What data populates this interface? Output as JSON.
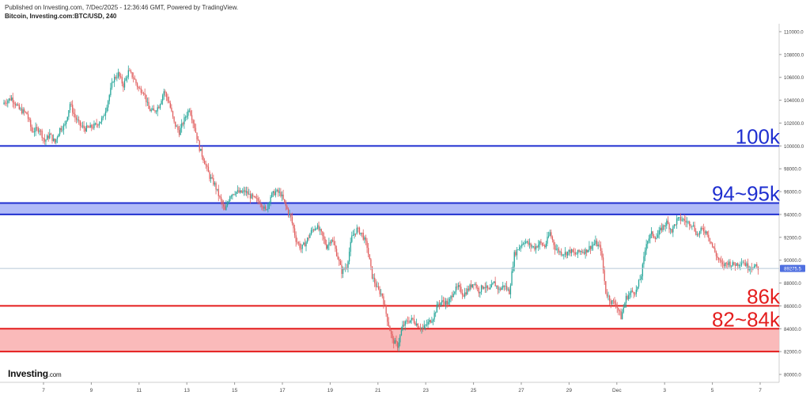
{
  "header": {
    "published": "Published on Investing.com, 7/Dec/2025 - 12:36:46 GMT, Powered by TradingView.",
    "symbol": "Bitcoin, Investing.com:BTC/USD, 240"
  },
  "logo": {
    "brand": "Investing",
    "suffix": ".com"
  },
  "colors": {
    "up": "#26a69a",
    "down": "#e15f5f",
    "blue_line": "#1f2fd0",
    "blue_zone": "#a9b4f7",
    "red_line": "#e41e1e",
    "red_zone": "#f9b3b3",
    "price_line": "#b7c6d6",
    "price_label_bg": "#4f6fe0"
  },
  "chart_data": {
    "type": "candlestick",
    "ylim": [
      79500,
      111000
    ],
    "y_ticks": [
      80000,
      82000,
      84000,
      86000,
      88000,
      90000,
      92000,
      94000,
      96000,
      98000,
      100000,
      102000,
      104000,
      106000,
      108000,
      110000
    ],
    "y_tick_labels": [
      "80000.0",
      "82000.0",
      "84000.0",
      "86000.0",
      "88000.0",
      "90000.0",
      "92000.0",
      "94000.0",
      "96000.0",
      "98000.0",
      "100000.0",
      "102000.0",
      "104000.0",
      "106000.0",
      "108000.0",
      "110000.0"
    ],
    "x_ticks": [
      "7",
      "9",
      "11",
      "13",
      "15",
      "17",
      "19",
      "21",
      "23",
      "25",
      "27",
      "29",
      "Dec",
      "3",
      "5",
      "7"
    ],
    "current_price": "89275.5",
    "current_price_value": 89275.5,
    "levels": [
      {
        "label": "100k",
        "value": 100000,
        "color": "blue"
      },
      {
        "label": "94~95k",
        "low": 94000,
        "high": 95000,
        "color": "blue"
      },
      {
        "label": "86k",
        "value": 86000,
        "color": "red"
      },
      {
        "label": "82~84k",
        "low": 82000,
        "high": 84000,
        "color": "red"
      }
    ],
    "close_path": [
      [
        0,
        103800
      ],
      [
        6,
        104200
      ],
      [
        12,
        103200
      ],
      [
        18,
        102800
      ],
      [
        22,
        101300
      ],
      [
        28,
        101500
      ],
      [
        32,
        100400
      ],
      [
        36,
        101000
      ],
      [
        40,
        100300
      ],
      [
        44,
        101500
      ],
      [
        48,
        101800
      ],
      [
        52,
        103700
      ],
      [
        56,
        102500
      ],
      [
        60,
        101800
      ],
      [
        64,
        101500
      ],
      [
        68,
        101600
      ],
      [
        72,
        101800
      ],
      [
        78,
        102400
      ],
      [
        82,
        104000
      ],
      [
        86,
        105800
      ],
      [
        90,
        106300
      ],
      [
        94,
        105300
      ],
      [
        98,
        106500
      ],
      [
        102,
        106000
      ],
      [
        106,
        105000
      ],
      [
        110,
        104800
      ],
      [
        114,
        103200
      ],
      [
        118,
        103000
      ],
      [
        122,
        103500
      ],
      [
        126,
        104800
      ],
      [
        130,
        103800
      ],
      [
        134,
        102000
      ],
      [
        138,
        101200
      ],
      [
        142,
        102300
      ],
      [
        146,
        103300
      ],
      [
        150,
        101700
      ],
      [
        154,
        99800
      ],
      [
        158,
        98600
      ],
      [
        162,
        97300
      ],
      [
        166,
        96600
      ],
      [
        170,
        95400
      ],
      [
        174,
        94300
      ],
      [
        178,
        95700
      ],
      [
        182,
        96000
      ],
      [
        186,
        95900
      ],
      [
        190,
        96000
      ],
      [
        194,
        95600
      ],
      [
        198,
        95300
      ],
      [
        202,
        95100
      ],
      [
        206,
        94300
      ],
      [
        210,
        95600
      ],
      [
        214,
        96000
      ],
      [
        218,
        95800
      ],
      [
        222,
        94700
      ],
      [
        226,
        93700
      ],
      [
        230,
        91800
      ],
      [
        234,
        91000
      ],
      [
        238,
        91600
      ],
      [
        242,
        92500
      ],
      [
        246,
        93000
      ],
      [
        250,
        92300
      ],
      [
        254,
        91200
      ],
      [
        258,
        91900
      ],
      [
        262,
        90600
      ],
      [
        266,
        89000
      ],
      [
        270,
        89500
      ],
      [
        274,
        92000
      ],
      [
        278,
        92700
      ],
      [
        282,
        92300
      ],
      [
        286,
        91200
      ],
      [
        290,
        88600
      ],
      [
        294,
        87500
      ],
      [
        298,
        86900
      ],
      [
        302,
        84800
      ],
      [
        306,
        83000
      ],
      [
        310,
        82500
      ],
      [
        314,
        84200
      ],
      [
        318,
        84700
      ],
      [
        322,
        84800
      ],
      [
        326,
        84300
      ],
      [
        330,
        84000
      ],
      [
        334,
        84500
      ],
      [
        338,
        85000
      ],
      [
        342,
        86200
      ],
      [
        346,
        86400
      ],
      [
        350,
        86200
      ],
      [
        354,
        87300
      ],
      [
        358,
        87600
      ],
      [
        362,
        87000
      ],
      [
        366,
        87500
      ],
      [
        370,
        88100
      ],
      [
        374,
        87300
      ],
      [
        378,
        87800
      ],
      [
        382,
        87300
      ],
      [
        386,
        88000
      ],
      [
        390,
        87400
      ],
      [
        394,
        87800
      ],
      [
        398,
        87200
      ],
      [
        402,
        90500
      ],
      [
        406,
        91200
      ],
      [
        410,
        91700
      ],
      [
        414,
        91300
      ],
      [
        418,
        91100
      ],
      [
        422,
        91500
      ],
      [
        426,
        91200
      ],
      [
        430,
        92400
      ],
      [
        434,
        91100
      ],
      [
        438,
        90700
      ],
      [
        442,
        90600
      ],
      [
        446,
        90800
      ],
      [
        450,
        90500
      ],
      [
        454,
        90800
      ],
      [
        458,
        90800
      ],
      [
        462,
        91200
      ],
      [
        466,
        91500
      ],
      [
        470,
        91000
      ],
      [
        474,
        87200
      ],
      [
        478,
        86400
      ],
      [
        482,
        86200
      ],
      [
        486,
        85000
      ],
      [
        490,
        86700
      ],
      [
        494,
        87200
      ],
      [
        498,
        87300
      ],
      [
        502,
        88700
      ],
      [
        506,
        91600
      ],
      [
        510,
        92300
      ],
      [
        514,
        92000
      ],
      [
        518,
        92800
      ],
      [
        522,
        93300
      ],
      [
        526,
        92600
      ],
      [
        530,
        93500
      ],
      [
        534,
        93600
      ],
      [
        538,
        93300
      ],
      [
        542,
        93200
      ],
      [
        546,
        92200
      ],
      [
        550,
        92700
      ],
      [
        554,
        92400
      ],
      [
        558,
        91200
      ],
      [
        562,
        90200
      ],
      [
        566,
        89500
      ],
      [
        570,
        89800
      ],
      [
        574,
        89600
      ],
      [
        578,
        89700
      ],
      [
        582,
        89900
      ],
      [
        586,
        89400
      ],
      [
        590,
        89500
      ],
      [
        594,
        89300
      ]
    ]
  }
}
